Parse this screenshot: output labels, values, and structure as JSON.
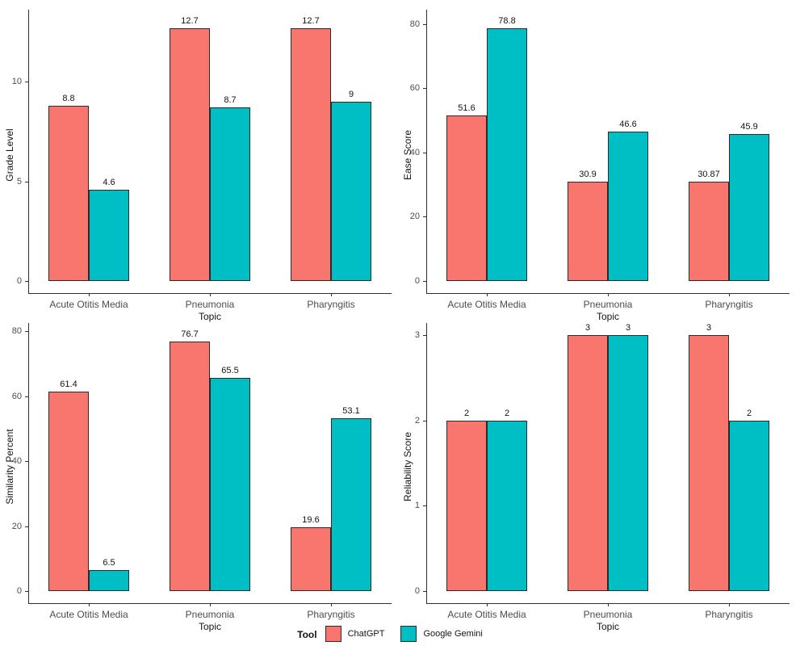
{
  "figure": {
    "background": "#ffffff",
    "bar_border_color": "#2a2a2a",
    "legend": {
      "title": "Tool",
      "position": "bottom-center",
      "items": [
        {
          "label": "ChatGPT",
          "color": "#F8766D"
        },
        {
          "label": "Google Gemini",
          "color": "#00BFC4"
        }
      ]
    }
  },
  "chart_data": [
    {
      "type": "bar",
      "title": "",
      "ylabel": "Grade Level",
      "xlabel": "Topic",
      "categories": [
        "Acute Otitis Media",
        "Pneumonia",
        "Pharyngitis"
      ],
      "series": [
        {
          "name": "ChatGPT",
          "color": "#F8766D",
          "values": [
            8.8,
            12.7,
            12.7
          ]
        },
        {
          "name": "Google Gemini",
          "color": "#00BFC4",
          "values": [
            4.6,
            8.7,
            9
          ]
        }
      ],
      "yticks": [
        0,
        5,
        10
      ],
      "ylim": [
        0,
        13.3
      ],
      "grid": false,
      "legend_position": "bottom"
    },
    {
      "type": "bar",
      "title": "",
      "ylabel": "Ease Score",
      "xlabel": "Topic",
      "categories": [
        "Acute Otitis Media",
        "Pneumonia",
        "Pharyngitis"
      ],
      "series": [
        {
          "name": "ChatGPT",
          "color": "#F8766D",
          "values": [
            51.6,
            30.9,
            30.87
          ]
        },
        {
          "name": "Google Gemini",
          "color": "#00BFC4",
          "values": [
            78.8,
            46.6,
            45.9
          ]
        }
      ],
      "yticks": [
        0,
        20,
        40,
        60,
        80
      ],
      "ylim": [
        0,
        82.5
      ],
      "grid": false,
      "legend_position": "bottom"
    },
    {
      "type": "bar",
      "title": "",
      "ylabel": "Similarity Percent",
      "xlabel": "Topic",
      "categories": [
        "Acute Otitis Media",
        "Pneumonia",
        "Pharyngitis"
      ],
      "series": [
        {
          "name": "ChatGPT",
          "color": "#F8766D",
          "values": [
            61.4,
            76.7,
            19.6
          ]
        },
        {
          "name": "Google Gemini",
          "color": "#00BFC4",
          "values": [
            6.5,
            65.5,
            53.1
          ]
        }
      ],
      "yticks": [
        0,
        20,
        40,
        60,
        80
      ],
      "ylim": [
        0,
        80.5
      ],
      "grid": false,
      "legend_position": "bottom"
    },
    {
      "type": "bar",
      "title": "",
      "ylabel": "Reliability Score",
      "xlabel": "Topic",
      "categories": [
        "Acute Otitis Media",
        "Pneumonia",
        "Pharyngitis"
      ],
      "series": [
        {
          "name": "ChatGPT",
          "color": "#F8766D",
          "values": [
            2,
            3,
            3
          ]
        },
        {
          "name": "Google Gemini",
          "color": "#00BFC4",
          "values": [
            2,
            3,
            2
          ]
        }
      ],
      "yticks": [
        0,
        1,
        2,
        3
      ],
      "ylim": [
        0,
        3.07
      ],
      "grid": false,
      "legend_position": "bottom"
    }
  ]
}
